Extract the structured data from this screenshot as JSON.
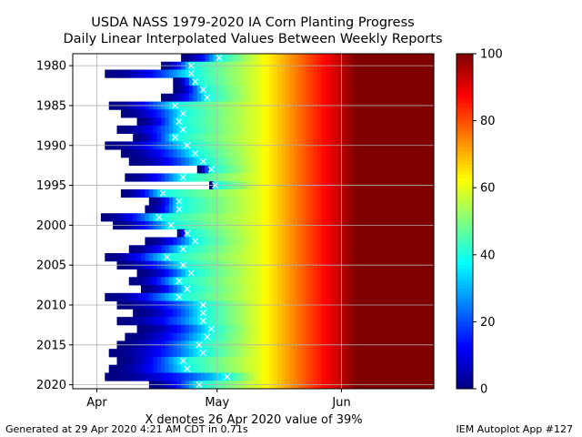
{
  "title_line1": "USDA NASS 1979-2020 IA Corn Planting Progress",
  "title_line2": "Daily Linear Interpolated Values Between Weekly Reports",
  "footer_left": "Generated at 29 Apr 2020 4:21 AM CDT in 0.71s",
  "footer_right": "IEM Autoplot App #127",
  "chart_data": {
    "type": "heatmap",
    "xlabel": "X denotes 26 Apr 2020 value of 39%",
    "x_ticks": [
      "Apr",
      "May",
      "Jun"
    ],
    "y_ticks": [
      1980,
      1985,
      1990,
      1995,
      2000,
      2005,
      2010,
      2015,
      2020
    ],
    "y_range": [
      1979,
      2020
    ],
    "x_range": [
      "Mar 26",
      "Jun 24"
    ],
    "colorbar": {
      "colormap": "jet",
      "range": [
        0,
        100
      ],
      "ticks": [
        0,
        20,
        40,
        60,
        80,
        100
      ]
    },
    "marker": {
      "symbol": "X",
      "date": "Apr 26",
      "value_percent": 39
    },
    "years": [
      {
        "year": 1979,
        "start": "Apr 22",
        "marker": "May 1"
      },
      {
        "year": 1980,
        "start": "Apr 17",
        "marker": "Apr 24"
      },
      {
        "year": 1981,
        "start": "Apr 3",
        "marker": "Apr 24"
      },
      {
        "year": 1982,
        "start": "Apr 20",
        "marker": "Apr 25"
      },
      {
        "year": 1983,
        "start": "Apr 20",
        "marker": "Apr 27"
      },
      {
        "year": 1984,
        "start": "Apr 17",
        "marker": "Apr 28"
      },
      {
        "year": 1985,
        "start": "Apr 4",
        "marker": "Apr 20"
      },
      {
        "year": 1986,
        "start": "Apr 7",
        "marker": "Apr 22"
      },
      {
        "year": 1987,
        "start": "Apr 11",
        "marker": "Apr 21"
      },
      {
        "year": 1988,
        "start": "Apr 6",
        "marker": "Apr 22"
      },
      {
        "year": 1989,
        "start": "Apr 10",
        "marker": "Apr 20"
      },
      {
        "year": 1990,
        "start": "Apr 3",
        "marker": "Apr 23"
      },
      {
        "year": 1991,
        "start": "Apr 7",
        "marker": "Apr 25"
      },
      {
        "year": 1992,
        "start": "Apr 9",
        "marker": "Apr 27"
      },
      {
        "year": 1993,
        "start": "Apr 26",
        "marker": "Apr 29"
      },
      {
        "year": 1994,
        "start": "Apr 8",
        "marker": "Apr 22"
      },
      {
        "year": 1995,
        "start": "Apr 29",
        "marker": "Apr 30"
      },
      {
        "year": 1996,
        "start": "Apr 7",
        "marker": "Apr 17"
      },
      {
        "year": 1997,
        "start": "Apr 14",
        "marker": "Apr 21"
      },
      {
        "year": 1998,
        "start": "Apr 13",
        "marker": "Apr 21"
      },
      {
        "year": 1999,
        "start": "Apr 2",
        "marker": "Apr 16"
      },
      {
        "year": 2000,
        "start": "Apr 5",
        "marker": "Apr 19"
      },
      {
        "year": 2001,
        "start": "Apr 21",
        "marker": "Apr 23"
      },
      {
        "year": 2002,
        "start": "Apr 13",
        "marker": "Apr 25"
      },
      {
        "year": 2003,
        "start": "Apr 9",
        "marker": "Apr 22"
      },
      {
        "year": 2004,
        "start": "Apr 3",
        "marker": "Apr 18"
      },
      {
        "year": 2005,
        "start": "Apr 6",
        "marker": "Apr 22"
      },
      {
        "year": 2006,
        "start": "Apr 11",
        "marker": "Apr 24"
      },
      {
        "year": 2007,
        "start": "Apr 9",
        "marker": "Apr 21"
      },
      {
        "year": 2008,
        "start": "Apr 12",
        "marker": "Apr 23"
      },
      {
        "year": 2009,
        "start": "Apr 3",
        "marker": "Apr 21"
      },
      {
        "year": 2010,
        "start": "Apr 6",
        "marker": "Apr 27"
      },
      {
        "year": 2011,
        "start": "Apr 10",
        "marker": "Apr 27"
      },
      {
        "year": 2012,
        "start": "Apr 6",
        "marker": "Apr 27"
      },
      {
        "year": 2013,
        "start": "Apr 11",
        "marker": "Apr 29"
      },
      {
        "year": 2014,
        "start": "Apr 8",
        "marker": "Apr 28"
      },
      {
        "year": 2015,
        "start": "Apr 6",
        "marker": "Apr 26"
      },
      {
        "year": 2016,
        "start": "Apr 4",
        "marker": "Apr 27"
      },
      {
        "year": 2017,
        "start": "Apr 6",
        "marker": "Apr 22"
      },
      {
        "year": 2018,
        "start": "Apr 4",
        "marker": "Apr 23"
      },
      {
        "year": 2019,
        "start": "Apr 3",
        "marker": "May 3"
      },
      {
        "year": 2020,
        "start": "Apr 14",
        "marker": "Apr 26"
      }
    ]
  }
}
